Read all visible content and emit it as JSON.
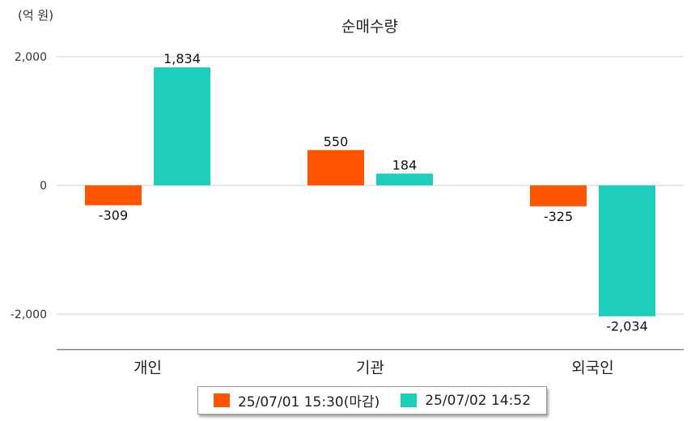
{
  "unit_label": "(억 원)",
  "chart_data": {
    "type": "bar",
    "title": "순매수량",
    "categories": [
      "개인",
      "기관",
      "외국인"
    ],
    "series": [
      {
        "name": "25/07/01 15:30(마감)",
        "color": "#FF5500",
        "values": [
          -309,
          550,
          -325
        ],
        "labels": [
          "-309",
          "550",
          "-325"
        ]
      },
      {
        "name": "25/07/02 14:52",
        "color": "#1ECDBC",
        "values": [
          1834,
          184,
          -2034
        ],
        "labels": [
          "1,834",
          "184",
          "-2,034"
        ]
      }
    ],
    "yticks": [
      2000,
      0,
      -2000
    ],
    "ytick_labels": [
      "2,000",
      "0",
      "-2,000"
    ],
    "ylim": [
      -2550,
      2000
    ],
    "grid": true,
    "legend_position": "bottom"
  }
}
